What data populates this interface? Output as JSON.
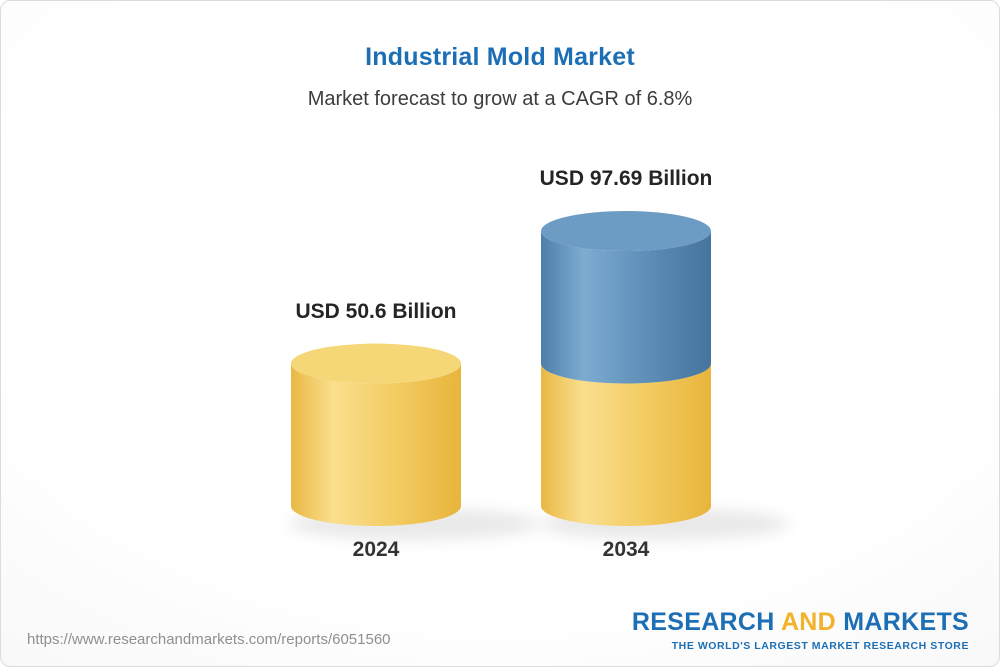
{
  "header": {
    "title": "Industrial Mold Market",
    "subtitle": "Market forecast to grow at a CAGR of 6.8%"
  },
  "chart_data": {
    "type": "bar",
    "style": "3d-cylinder",
    "title": "Industrial Mold Market",
    "subtitle": "Market forecast to grow at a CAGR of 6.8%",
    "unit": "USD Billion",
    "cagr_percent": 6.8,
    "categories": [
      "2024",
      "2034"
    ],
    "values": [
      50.6,
      97.69
    ],
    "value_labels": [
      "USD 50.6 Billion",
      "USD 97.69 Billion"
    ],
    "stacking_note": "2034 bar shows gold base equal to 2024 value (50.6) plus blue growth segment (47.09)",
    "ylim": [
      0,
      100
    ],
    "legend": "none",
    "grid": false,
    "colors": {
      "gold": "#f0c24f",
      "gold_top": "#f6d778",
      "blue": "#5585b0",
      "blue_top": "#6c9bc3",
      "title_blue": "#1d6fb5"
    }
  },
  "footer": {
    "url": "https://www.researchandmarkets.com/reports/6051560",
    "logo": {
      "part1": "RESEARCH",
      "part2": "AND",
      "part3": "MARKETS",
      "tagline": "THE WORLD'S LARGEST MARKET RESEARCH STORE"
    }
  }
}
